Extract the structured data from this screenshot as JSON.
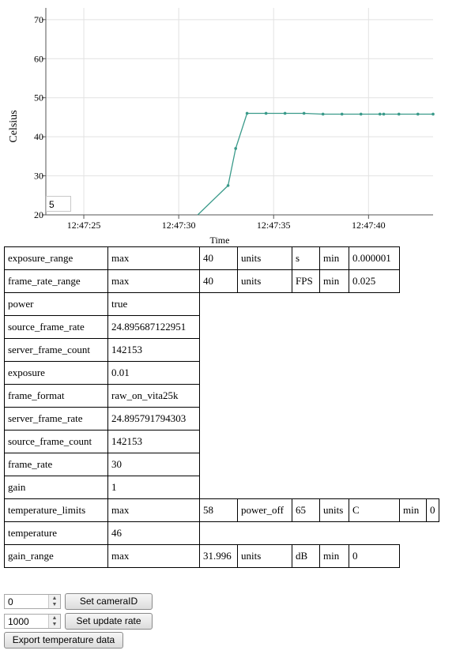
{
  "chart_data": {
    "type": "line",
    "title": "",
    "xlabel": "Time",
    "ylabel": "Celsius",
    "ylim": [
      20,
      73
    ],
    "xlim": [
      "12:47:23",
      "12:47:43.4"
    ],
    "yticks": [
      "20",
      "30",
      "40",
      "50",
      "60",
      "70"
    ],
    "xticks": [
      "12:47:25",
      "12:47:30",
      "12:47:35",
      "12:47:40"
    ],
    "grid": true,
    "line_color": "#3a9a8a",
    "series": [
      {
        "x": [
          "12:47:31.0",
          "12:47:32.6",
          "12:47:33.0",
          "12:47:33.6",
          "12:47:34.6",
          "12:47:35.6",
          "12:47:36.6",
          "12:47:37.6",
          "12:47:38.6",
          "12:47:39.6",
          "12:47:40.6",
          "12:47:40.8",
          "12:47:41.6",
          "12:47:42.6",
          "12:47:43.4"
        ],
        "y": [
          20,
          27.5,
          37,
          46,
          46,
          46,
          46,
          45.8,
          45.8,
          45.8,
          45.8,
          45.8,
          45.8,
          45.8,
          45.8
        ]
      }
    ]
  },
  "zoom_value": "5",
  "table": {
    "exposure_range": [
      "exposure_range",
      "max",
      "40",
      "units",
      "s",
      "min",
      "0.000001"
    ],
    "frame_rate_range": [
      "frame_rate_range",
      "max",
      "40",
      "units",
      "FPS",
      "min",
      "0.025"
    ],
    "simple": [
      [
        "power",
        "true"
      ],
      [
        "source_frame_rate",
        "24.895687122951"
      ],
      [
        "server_frame_count",
        "142153"
      ],
      [
        "exposure",
        "0.01"
      ],
      [
        "frame_format",
        "raw_on_vita25k"
      ],
      [
        "server_frame_rate",
        "24.895791794303"
      ],
      [
        "source_frame_count",
        "142153"
      ],
      [
        "frame_rate",
        "30"
      ],
      [
        "gain",
        "1"
      ]
    ],
    "temperature_limits": [
      "temperature_limits",
      "max",
      "58",
      "power_off",
      "65",
      "units",
      "C",
      "min",
      "0"
    ],
    "temperature": [
      "temperature",
      "46"
    ],
    "gain_range": [
      "gain_range",
      "max",
      "31.996",
      "units",
      "dB",
      "min",
      "0"
    ]
  },
  "controls": {
    "camera_id_value": "0",
    "camera_id_button": "Set cameraID",
    "update_rate_value": "1000",
    "update_rate_button": "Set update rate",
    "export_button": "Export temperature data"
  }
}
